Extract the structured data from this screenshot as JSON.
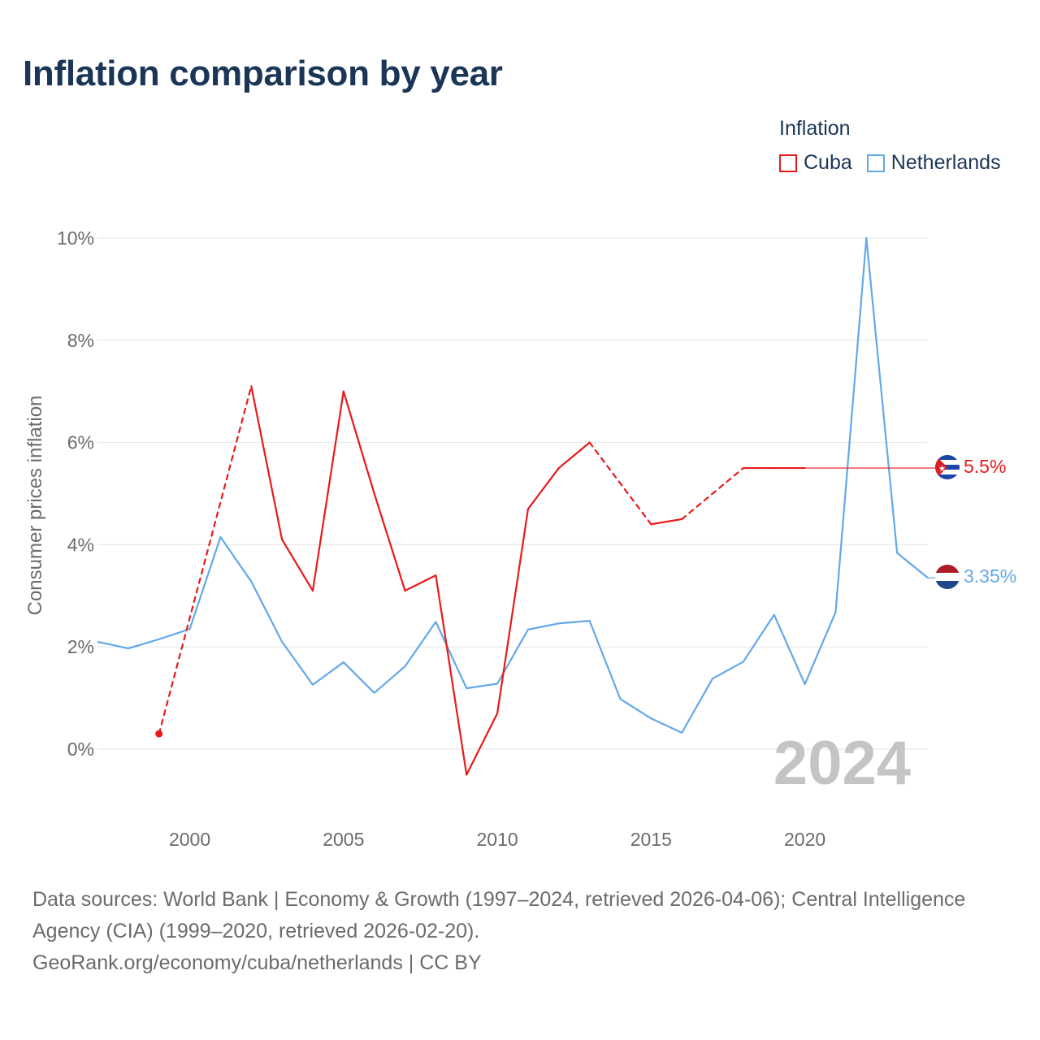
{
  "title": "Inflation comparison by year",
  "legend": {
    "title": "Inflation",
    "items": [
      {
        "label": "Cuba",
        "color": "#e8191a"
      },
      {
        "label": "Netherlands",
        "color": "#63a8e8"
      }
    ]
  },
  "watermark_year": "2024",
  "end_labels": {
    "cuba": "5.5%",
    "netherlands": "3.35%"
  },
  "footer": {
    "sources": "Data sources: World Bank | Economy & Growth (1997–2024, retrieved 2026-04-06); Central Intelligence Agency (CIA) (1999–2020, retrieved 2026-02-20).",
    "link": "GeoRank.org/economy/cuba/netherlands | CC BY"
  },
  "chart_data": {
    "type": "line",
    "title": "Inflation comparison by year",
    "xlabel": "",
    "ylabel": "Consumer prices inflation",
    "xlim": [
      1997,
      2024
    ],
    "ylim": [
      -1.5,
      10
    ],
    "x_ticks": [
      2000,
      2005,
      2010,
      2015,
      2020
    ],
    "y_ticks": [
      0,
      2,
      4,
      6,
      8,
      10
    ],
    "y_tick_labels": [
      "0%",
      "2%",
      "4%",
      "6%",
      "8%",
      "10%"
    ],
    "grid": true,
    "legend_position": "top-right",
    "series": [
      {
        "name": "Cuba",
        "color": "#e8191a",
        "x": [
          1999,
          2002,
          2003,
          2004,
          2005,
          2006,
          2007,
          2008,
          2009,
          2010,
          2011,
          2012,
          2013,
          2015,
          2016,
          2018,
          2019,
          2020
        ],
        "values": [
          0.3,
          7.1,
          4.1,
          3.1,
          7.0,
          5.0,
          3.1,
          3.4,
          -0.5,
          0.7,
          4.7,
          5.5,
          6.0,
          4.4,
          4.5,
          5.5,
          5.5,
          5.5
        ],
        "last_value": 5.5
      },
      {
        "name": "Netherlands",
        "color": "#63a8e8",
        "x": [
          1997,
          1998,
          1999,
          2000,
          2001,
          2002,
          2003,
          2004,
          2005,
          2006,
          2007,
          2008,
          2009,
          2010,
          2011,
          2012,
          2013,
          2014,
          2015,
          2016,
          2017,
          2018,
          2019,
          2020,
          2021,
          2022,
          2023,
          2024
        ],
        "values": [
          2.1,
          1.97,
          2.15,
          2.35,
          4.15,
          3.28,
          2.1,
          1.26,
          1.7,
          1.1,
          1.62,
          2.49,
          1.19,
          1.28,
          2.34,
          2.46,
          2.51,
          0.98,
          0.6,
          0.32,
          1.38,
          1.71,
          2.63,
          1.27,
          2.68,
          10.0,
          3.84,
          3.35
        ]
      }
    ]
  }
}
